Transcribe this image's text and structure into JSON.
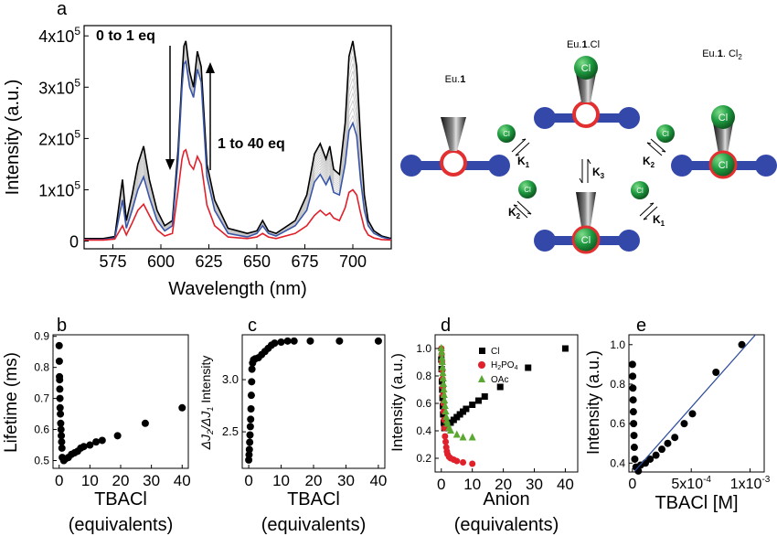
{
  "panels": {
    "a": {
      "letter": "a"
    },
    "b": {
      "letter": "b"
    },
    "c": {
      "letter": "c"
    },
    "d": {
      "letter": "d"
    },
    "e": {
      "letter": "e"
    }
  },
  "colors": {
    "black": "#000000",
    "blue": "#3a56a8",
    "red": "#e0202a",
    "grey": "#c8c8c8",
    "green": "#5aa832",
    "scheme_blue": "#3348a8",
    "scheme_red": "#e23030",
    "scheme_green": "#1e8a3a",
    "fit_line": "#2a4a9a"
  },
  "chart_data": [
    {
      "id": "a",
      "type": "line",
      "xlabel": "Wavelength (nm)",
      "ylabel": "Intensity (a.u.)",
      "xlim": [
        560,
        720
      ],
      "ylim": [
        -15000,
        420000
      ],
      "x_ticks": [
        575,
        600,
        625,
        650,
        675,
        700
      ],
      "y_ticks": [
        {
          "value": 0,
          "base": "0",
          "exp": ""
        },
        {
          "value": 100000,
          "base": "1x10",
          "exp": "5"
        },
        {
          "value": 200000,
          "base": "2x10",
          "exp": "5"
        },
        {
          "value": 300000,
          "base": "3x10",
          "exp": "5"
        },
        {
          "value": 400000,
          "base": "4x10",
          "exp": "5"
        }
      ],
      "annotations": {
        "down": "0 to 1 eq",
        "up": "1 to 40 eq"
      },
      "series": [
        {
          "color": "#000000",
          "x": [
            560,
            570,
            576,
            580,
            582,
            585,
            588,
            591,
            594,
            598,
            602,
            606,
            609,
            611,
            612,
            613,
            615,
            617,
            619,
            621,
            624,
            628,
            635,
            645,
            650,
            653,
            656,
            660,
            670,
            676,
            680,
            683,
            686,
            688,
            690,
            693,
            696,
            698,
            700,
            702,
            704,
            706,
            708,
            711,
            715,
            720
          ],
          "y": [
            5000,
            5000,
            9000,
            120000,
            40000,
            90000,
            150000,
            185000,
            120000,
            60000,
            30000,
            40000,
            180000,
            320000,
            380000,
            390000,
            330000,
            300000,
            370000,
            340000,
            150000,
            80000,
            25000,
            15000,
            20000,
            40000,
            20000,
            15000,
            40000,
            90000,
            170000,
            190000,
            160000,
            185000,
            140000,
            130000,
            230000,
            360000,
            390000,
            340000,
            200000,
            90000,
            40000,
            20000,
            10000,
            5000
          ]
        },
        {
          "color": "#3a56a8",
          "x": [
            560,
            570,
            576,
            580,
            582,
            585,
            588,
            591,
            594,
            598,
            602,
            606,
            609,
            611,
            612,
            613,
            615,
            617,
            619,
            621,
            624,
            628,
            635,
            645,
            650,
            653,
            656,
            660,
            670,
            676,
            680,
            683,
            686,
            688,
            690,
            693,
            696,
            698,
            700,
            702,
            704,
            706,
            708,
            711,
            715,
            720
          ],
          "y": [
            3000,
            3000,
            6000,
            80000,
            25000,
            60000,
            100000,
            125000,
            85000,
            40000,
            20000,
            30000,
            160000,
            300000,
            345000,
            350000,
            300000,
            280000,
            335000,
            310000,
            125000,
            60000,
            15000,
            8000,
            15000,
            30000,
            15000,
            10000,
            30000,
            60000,
            115000,
            130000,
            110000,
            125000,
            95000,
            90000,
            150000,
            215000,
            230000,
            205000,
            120000,
            60000,
            30000,
            15000,
            8000,
            3000
          ]
        },
        {
          "color": "#e0202a",
          "x": [
            560,
            570,
            576,
            580,
            582,
            585,
            588,
            591,
            594,
            598,
            602,
            606,
            609,
            611,
            612,
            613,
            615,
            617,
            619,
            621,
            624,
            628,
            635,
            645,
            650,
            653,
            656,
            660,
            670,
            676,
            680,
            683,
            686,
            688,
            690,
            693,
            696,
            698,
            700,
            702,
            704,
            706,
            708,
            711,
            715,
            720
          ],
          "y": [
            2000,
            2000,
            4000,
            30000,
            12000,
            35000,
            60000,
            72000,
            50000,
            22000,
            10000,
            15000,
            100000,
            160000,
            175000,
            178000,
            150000,
            140000,
            165000,
            150000,
            70000,
            30000,
            8000,
            5000,
            8000,
            15000,
            8000,
            5000,
            15000,
            30000,
            50000,
            60000,
            50000,
            55000,
            45000,
            40000,
            65000,
            95000,
            100000,
            90000,
            55000,
            25000,
            12000,
            6000,
            3000,
            2000
          ]
        }
      ]
    },
    {
      "id": "b",
      "type": "scatter",
      "xlabel": "TBACl",
      "xlabel2": "(equivalents)",
      "ylabel": "Lifetime (ms)",
      "xlim": [
        -2,
        42
      ],
      "ylim": [
        0.475,
        0.905
      ],
      "x_ticks": [
        0,
        10,
        20,
        30,
        40
      ],
      "y_ticks": [
        0.5,
        0.6,
        0.7,
        0.8,
        0.9
      ],
      "series": [
        {
          "x": [
            0,
            0.05,
            0.1,
            0.15,
            0.2,
            0.25,
            0.3,
            0.4,
            0.5,
            0.6,
            0.7,
            0.8,
            0.9,
            1.0,
            1.5,
            2,
            3,
            4,
            5,
            6,
            7,
            8,
            10,
            12,
            14,
            19,
            28,
            40
          ],
          "y": [
            0.87,
            0.82,
            0.77,
            0.76,
            0.73,
            0.7,
            0.67,
            0.65,
            0.62,
            0.6,
            0.58,
            0.56,
            0.54,
            0.51,
            0.5,
            0.505,
            0.51,
            0.52,
            0.525,
            0.53,
            0.54,
            0.545,
            0.55,
            0.56,
            0.565,
            0.58,
            0.62,
            0.67
          ]
        }
      ]
    },
    {
      "id": "c",
      "type": "scatter",
      "xlabel": "TBACl",
      "xlabel2": "(equivalents)",
      "ylabel_parts": [
        "ΔJ",
        "2",
        "/ΔJ",
        "1",
        " Intensity"
      ],
      "xlim": [
        -2,
        42
      ],
      "ylim": [
        2.15,
        3.43
      ],
      "x_ticks": [
        0,
        10,
        20,
        30,
        40
      ],
      "y_ticks": [
        2.5,
        3.0
      ],
      "y_tick_labels": [
        "2.5",
        "3.0"
      ],
      "series": [
        {
          "x": [
            0,
            0.1,
            0.2,
            0.3,
            0.4,
            0.5,
            0.6,
            0.7,
            0.8,
            0.9,
            1.0,
            1.2,
            1.5,
            2,
            3,
            4,
            5,
            6,
            7,
            8,
            10,
            12,
            14,
            19,
            28,
            40
          ],
          "y": [
            2.23,
            2.28,
            2.33,
            2.4,
            2.47,
            2.55,
            2.62,
            2.72,
            2.85,
            2.98,
            3.1,
            3.16,
            3.19,
            3.2,
            3.21,
            3.24,
            3.27,
            3.3,
            3.33,
            3.35,
            3.36,
            3.37,
            3.37,
            3.37,
            3.37,
            3.37
          ]
        }
      ]
    },
    {
      "id": "d",
      "type": "scatter",
      "xlabel": "Anion",
      "xlabel2": "(equivalents)",
      "ylabel": "Intensity (a.u.)",
      "xlim": [
        -2,
        44
      ],
      "ylim": [
        0.1,
        1.1
      ],
      "x_ticks": [
        0,
        10,
        20,
        30,
        40
      ],
      "y_ticks": [
        0.2,
        0.4,
        0.6,
        0.8,
        1.0
      ],
      "series": [
        {
          "name": "Cl",
          "marker": "square",
          "color": "#000000",
          "x": [
            0,
            0.1,
            0.2,
            0.3,
            0.4,
            0.5,
            0.6,
            0.8,
            1.0,
            1.5,
            2,
            3,
            4,
            5,
            6,
            7,
            8,
            10,
            12,
            14,
            19,
            28,
            40
          ],
          "y": [
            0.92,
            0.85,
            0.76,
            0.7,
            0.64,
            0.58,
            0.52,
            0.46,
            0.42,
            0.43,
            0.44,
            0.46,
            0.48,
            0.5,
            0.52,
            0.54,
            0.56,
            0.59,
            0.62,
            0.65,
            0.72,
            0.86,
            1.0
          ]
        },
        {
          "name": "H2PO4",
          "marker": "circle",
          "color": "#e0202a",
          "x": [
            0,
            0.1,
            0.2,
            0.3,
            0.4,
            0.5,
            0.6,
            0.7,
            0.8,
            0.9,
            1.0,
            1.2,
            1.4,
            1.6,
            1.8,
            2,
            2.5,
            3,
            4,
            5,
            7,
            10
          ],
          "y": [
            1.0,
            0.96,
            0.9,
            0.84,
            0.78,
            0.72,
            0.66,
            0.6,
            0.54,
            0.48,
            0.42,
            0.36,
            0.32,
            0.28,
            0.25,
            0.23,
            0.21,
            0.2,
            0.19,
            0.18,
            0.17,
            0.16
          ]
        },
        {
          "name": "OAc",
          "marker": "triangle",
          "color": "#5aa832",
          "x": [
            0,
            0.1,
            0.2,
            0.3,
            0.4,
            0.5,
            0.6,
            0.7,
            0.8,
            0.9,
            1.0,
            1.2,
            1.4,
            1.6,
            1.8,
            2,
            2.5,
            3,
            5,
            7,
            10
          ],
          "y": [
            1.0,
            0.97,
            0.93,
            0.9,
            0.86,
            0.82,
            0.78,
            0.74,
            0.7,
            0.66,
            0.62,
            0.58,
            0.54,
            0.5,
            0.47,
            0.45,
            0.42,
            0.4,
            0.37,
            0.35,
            0.35
          ]
        }
      ],
      "legend_placement": "top-right"
    },
    {
      "id": "e",
      "type": "scatter",
      "xlabel": "TBACl [M]",
      "ylabel": "Intensity (a.u.)",
      "xlim": [
        -3e-05,
        0.00112
      ],
      "ylim": [
        0.355,
        1.05
      ],
      "x_ticks": [
        {
          "value": 0,
          "base": "0",
          "exp": ""
        },
        {
          "value": 0.0005,
          "base": "5x10",
          "exp": "-4"
        },
        {
          "value": 0.001,
          "base": "1x10",
          "exp": "-3"
        }
      ],
      "y_ticks": [
        0.4,
        0.6,
        0.8,
        1.0
      ],
      "fit_line": {
        "x": [
          2e-05,
          0.00112
        ],
        "y": [
          0.36,
          1.1
        ]
      },
      "series": [
        {
          "x": [
            0,
            2e-06,
            4e-06,
            6e-06,
            8e-06,
            1e-05,
            1.3e-05,
            1.6e-05,
            2e-05,
            3e-05,
            5e-05,
            7e-05,
            0.00011,
            0.00015,
            0.0002,
            0.00025,
            0.0003,
            0.00036,
            0.00044,
            0.00051,
            0.00071,
            0.00093
          ],
          "y": [
            0.9,
            0.84,
            0.78,
            0.72,
            0.66,
            0.6,
            0.54,
            0.48,
            0.42,
            0.38,
            0.36,
            0.39,
            0.4,
            0.42,
            0.44,
            0.47,
            0.5,
            0.53,
            0.6,
            0.65,
            0.86,
            1.0
          ]
        }
      ]
    }
  ],
  "scheme": {
    "species": {
      "eu1": {
        "main": "Eu.",
        "bold": "1",
        "tail": ""
      },
      "eu1cl": {
        "main": "Eu.",
        "bold": "1",
        "tail": ".Cl"
      },
      "eu1cl2": {
        "main": "Eu.",
        "bold": "1",
        "tail": ". Cl",
        "sub": "2"
      }
    },
    "ion_label": "Cl",
    "constants": {
      "k1_main": "K",
      "k1_sub": "1",
      "k2_main": "K",
      "k2_sub": "2",
      "k3_main": "K",
      "k3_sub": "3"
    }
  }
}
